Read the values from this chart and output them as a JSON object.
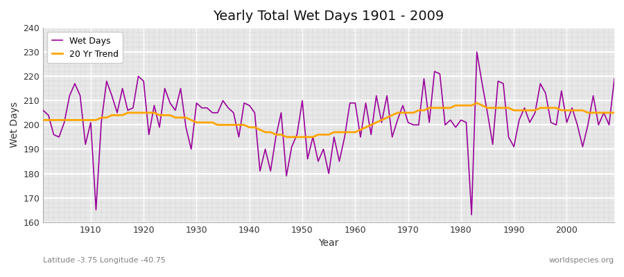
{
  "title": "Yearly Total Wet Days 1901 - 2009",
  "xlabel": "Year",
  "ylabel": "Wet Days",
  "ylim": [
    160,
    240
  ],
  "yticks": [
    160,
    170,
    180,
    190,
    200,
    210,
    220,
    230,
    240
  ],
  "wet_days_color": "#990099",
  "trend_color": "#FFA500",
  "background_color": "#ffffff",
  "plot_bg_color": "#e8e8e8",
  "legend_labels": [
    "Wet Days",
    "20 Yr Trend"
  ],
  "subtitle_left": "Latitude -3.75 Longitude -40.75",
  "subtitle_right": "worldspecies.org",
  "years": [
    1901,
    1902,
    1903,
    1904,
    1905,
    1906,
    1907,
    1908,
    1909,
    1910,
    1911,
    1912,
    1913,
    1914,
    1915,
    1916,
    1917,
    1918,
    1919,
    1920,
    1921,
    1922,
    1923,
    1924,
    1925,
    1926,
    1927,
    1928,
    1929,
    1930,
    1931,
    1932,
    1933,
    1934,
    1935,
    1936,
    1937,
    1938,
    1939,
    1940,
    1941,
    1942,
    1943,
    1944,
    1945,
    1946,
    1947,
    1948,
    1949,
    1950,
    1951,
    1952,
    1953,
    1954,
    1955,
    1956,
    1957,
    1958,
    1959,
    1960,
    1961,
    1962,
    1963,
    1964,
    1965,
    1966,
    1967,
    1968,
    1969,
    1970,
    1971,
    1972,
    1973,
    1974,
    1975,
    1976,
    1977,
    1978,
    1979,
    1980,
    1981,
    1982,
    1983,
    1984,
    1985,
    1986,
    1987,
    1988,
    1989,
    1990,
    1991,
    1992,
    1993,
    1994,
    1995,
    1996,
    1997,
    1998,
    1999,
    2000,
    2001,
    2002,
    2003,
    2004,
    2005,
    2006,
    2007,
    2008,
    2009
  ],
  "wet_days": [
    206,
    204,
    196,
    195,
    201,
    212,
    217,
    212,
    192,
    201,
    165,
    201,
    218,
    212,
    205,
    215,
    206,
    207,
    220,
    218,
    196,
    208,
    199,
    215,
    209,
    206,
    215,
    199,
    190,
    209,
    207,
    207,
    205,
    205,
    210,
    207,
    205,
    195,
    209,
    208,
    205,
    181,
    190,
    181,
    195,
    205,
    179,
    191,
    196,
    210,
    186,
    195,
    185,
    190,
    180,
    195,
    185,
    195,
    209,
    209,
    195,
    209,
    196,
    212,
    201,
    212,
    195,
    202,
    208,
    201,
    200,
    200,
    219,
    201,
    222,
    221,
    200,
    202,
    199,
    202,
    201,
    163,
    230,
    217,
    205,
    192,
    218,
    217,
    195,
    191,
    202,
    207,
    201,
    205,
    217,
    213,
    201,
    200,
    214,
    201,
    207,
    200,
    191,
    200,
    212,
    200,
    205,
    200,
    219
  ],
  "trend": [
    202,
    202,
    202,
    202,
    202,
    202,
    202,
    202,
    202,
    202,
    202,
    203,
    203,
    204,
    204,
    204,
    205,
    205,
    205,
    205,
    205,
    205,
    204,
    204,
    204,
    203,
    203,
    203,
    202,
    201,
    201,
    201,
    201,
    200,
    200,
    200,
    200,
    200,
    200,
    199,
    199,
    198,
    197,
    197,
    196,
    196,
    195,
    195,
    195,
    195,
    195,
    195,
    196,
    196,
    196,
    197,
    197,
    197,
    197,
    197,
    198,
    199,
    200,
    201,
    202,
    203,
    204,
    205,
    205,
    205,
    205,
    206,
    206,
    207,
    207,
    207,
    207,
    207,
    208,
    208,
    208,
    208,
    209,
    208,
    207,
    207,
    207,
    207,
    207,
    206,
    206,
    206,
    206,
    206,
    207,
    207,
    207,
    207,
    206,
    206,
    206,
    206,
    206,
    205,
    205,
    205,
    205,
    205,
    205
  ]
}
